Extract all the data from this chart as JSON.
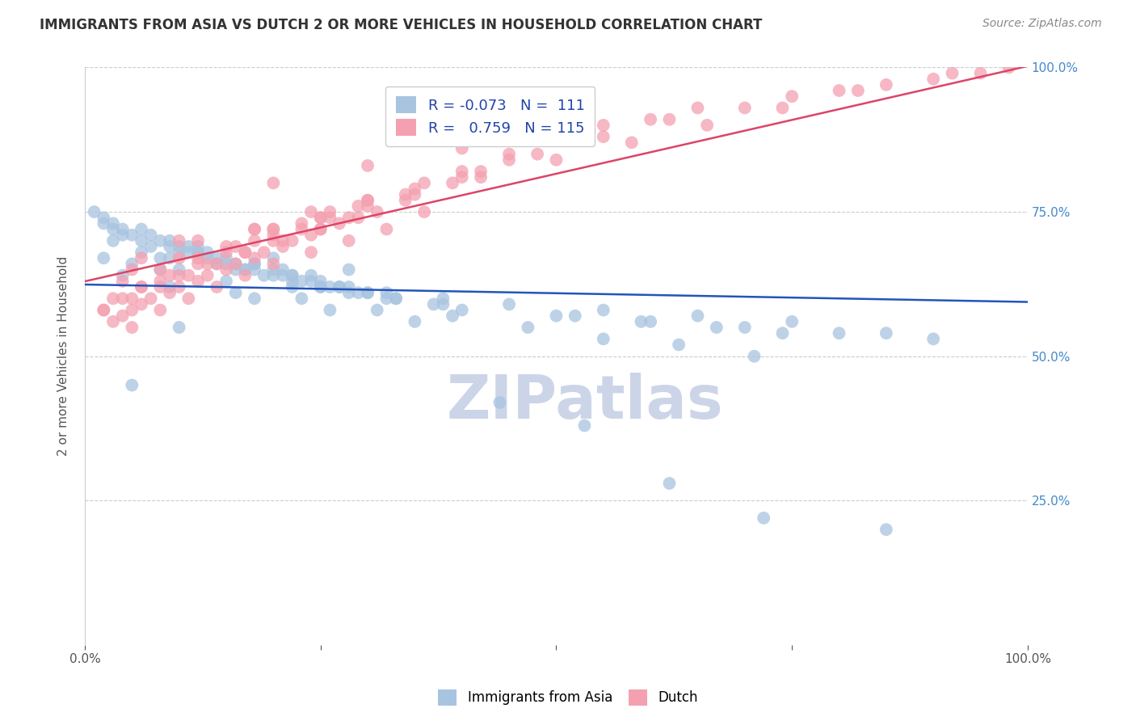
{
  "title": "IMMIGRANTS FROM ASIA VS DUTCH 2 OR MORE VEHICLES IN HOUSEHOLD CORRELATION CHART",
  "source": "Source: ZipAtlas.com",
  "ylabel": "2 or more Vehicles in Household",
  "legend_label_blue": "Immigrants from Asia",
  "legend_label_pink": "Dutch",
  "blue_color": "#a8c4e0",
  "pink_color": "#f4a0b0",
  "blue_line_color": "#2255bb",
  "pink_line_color": "#dd4466",
  "background_color": "#ffffff",
  "watermark_text": "ZIPatlas",
  "watermark_color": "#ccd5e8",
  "grid_color": "#cccccc",
  "title_color": "#333333",
  "axis_label_color": "#555555",
  "tick_color_right": "#4488cc",
  "source_color": "#888888",
  "R_blue": -0.073,
  "N_blue": 111,
  "R_pink": 0.759,
  "N_pink": 115,
  "blue_x": [
    0.5,
    0.8,
    1.0,
    1.2,
    1.5,
    1.8,
    2.0,
    2.2,
    2.5,
    2.8,
    0.3,
    0.6,
    0.9,
    1.1,
    1.4,
    1.7,
    2.0,
    2.3,
    2.6,
    3.0,
    0.4,
    0.7,
    1.0,
    1.3,
    1.6,
    1.9,
    2.2,
    2.5,
    2.9,
    3.3,
    0.2,
    0.5,
    0.8,
    1.1,
    1.4,
    1.7,
    2.1,
    2.5,
    2.8,
    3.2,
    0.3,
    0.6,
    0.9,
    1.2,
    1.6,
    2.0,
    2.4,
    2.8,
    3.3,
    3.8,
    0.2,
    0.4,
    0.7,
    1.0,
    1.3,
    1.8,
    2.2,
    2.7,
    3.2,
    3.7,
    0.1,
    0.3,
    0.6,
    0.9,
    1.2,
    1.5,
    1.8,
    2.1,
    2.4,
    2.7,
    0.8,
    1.5,
    2.2,
    3.0,
    3.8,
    4.5,
    5.2,
    5.9,
    6.7,
    7.4,
    4.0,
    5.0,
    6.0,
    7.0,
    8.0,
    9.0,
    8.5,
    7.5,
    6.5,
    5.5,
    0.4,
    0.9,
    1.6,
    2.3,
    3.1,
    3.9,
    4.7,
    5.5,
    6.3,
    7.1,
    0.2,
    0.5,
    1.0,
    1.8,
    2.6,
    3.5,
    4.4,
    5.3,
    6.2,
    7.2,
    8.5
  ],
  "blue_y": [
    66,
    67,
    65,
    68,
    66,
    65,
    67,
    64,
    63,
    65,
    70,
    68,
    67,
    69,
    66,
    65,
    64,
    63,
    62,
    61,
    71,
    69,
    68,
    67,
    65,
    64,
    63,
    62,
    61,
    60,
    73,
    71,
    70,
    68,
    67,
    65,
    64,
    62,
    61,
    60,
    72,
    70,
    69,
    68,
    66,
    65,
    63,
    62,
    60,
    59,
    74,
    72,
    71,
    69,
    68,
    66,
    64,
    62,
    61,
    59,
    75,
    73,
    72,
    70,
    69,
    67,
    66,
    65,
    64,
    62,
    65,
    63,
    62,
    61,
    60,
    59,
    57,
    56,
    55,
    54,
    58,
    57,
    56,
    55,
    54,
    53,
    54,
    56,
    57,
    58,
    64,
    62,
    61,
    60,
    58,
    57,
    55,
    53,
    52,
    50,
    67,
    45,
    55,
    60,
    58,
    56,
    42,
    38,
    28,
    22,
    20
  ],
  "pink_x": [
    0.2,
    0.4,
    0.6,
    0.8,
    1.0,
    1.2,
    1.5,
    1.8,
    2.0,
    2.3,
    0.3,
    0.5,
    0.7,
    1.0,
    1.3,
    1.6,
    1.9,
    2.2,
    2.5,
    2.8,
    0.4,
    0.6,
    0.9,
    1.2,
    1.5,
    1.8,
    2.1,
    2.4,
    2.7,
    3.1,
    0.5,
    0.8,
    1.1,
    1.4,
    1.7,
    2.0,
    2.4,
    2.8,
    3.2,
    3.6,
    0.3,
    0.6,
    0.9,
    1.3,
    1.7,
    2.1,
    2.5,
    2.9,
    3.4,
    3.9,
    0.4,
    0.8,
    1.2,
    1.6,
    2.0,
    2.5,
    3.0,
    3.5,
    4.0,
    4.5,
    0.5,
    1.0,
    1.5,
    2.0,
    2.5,
    3.0,
    3.5,
    4.0,
    4.5,
    5.0,
    0.6,
    1.2,
    1.8,
    2.4,
    3.0,
    3.6,
    4.2,
    4.8,
    5.5,
    6.2,
    1.0,
    1.8,
    2.6,
    3.4,
    4.2,
    5.0,
    5.8,
    6.6,
    7.4,
    8.2,
    2.0,
    3.0,
    4.0,
    5.0,
    6.0,
    7.0,
    8.0,
    9.0,
    9.5,
    9.8,
    5.5,
    6.5,
    7.5,
    8.5,
    9.2,
    0.2,
    0.5,
    0.8,
    1.1,
    1.4,
    1.7,
    2.0,
    2.3,
    2.6,
    2.9
  ],
  "pink_y": [
    58,
    60,
    62,
    63,
    64,
    66,
    68,
    70,
    71,
    73,
    56,
    58,
    60,
    62,
    64,
    66,
    68,
    70,
    72,
    74,
    57,
    59,
    61,
    63,
    65,
    67,
    69,
    71,
    73,
    75,
    55,
    58,
    60,
    62,
    64,
    66,
    68,
    70,
    72,
    75,
    60,
    62,
    64,
    66,
    68,
    70,
    72,
    74,
    77,
    80,
    63,
    65,
    67,
    69,
    72,
    74,
    76,
    78,
    81,
    84,
    65,
    67,
    69,
    72,
    74,
    77,
    79,
    82,
    85,
    88,
    67,
    70,
    72,
    75,
    77,
    80,
    82,
    85,
    88,
    91,
    70,
    72,
    75,
    78,
    81,
    84,
    87,
    90,
    93,
    96,
    80,
    83,
    86,
    88,
    91,
    93,
    96,
    98,
    99,
    100,
    90,
    93,
    95,
    97,
    99,
    58,
    60,
    62,
    64,
    66,
    68,
    70,
    72,
    74,
    76
  ]
}
